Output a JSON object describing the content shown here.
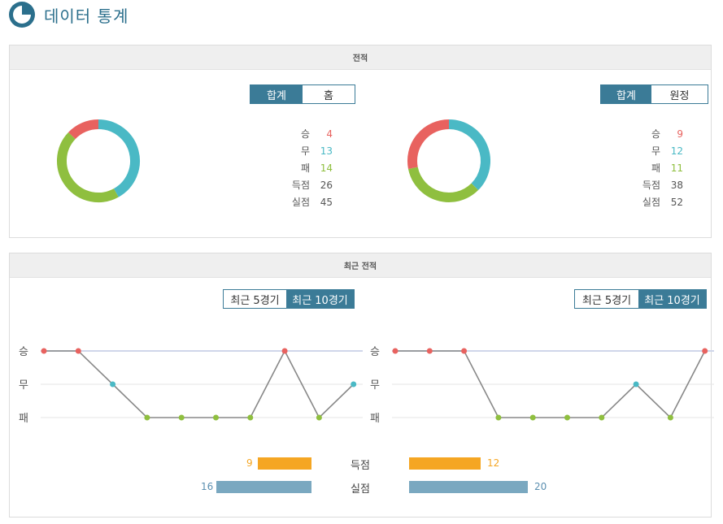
{
  "header": {
    "title": "데이터 통계",
    "icon": "pie-chart-icon"
  },
  "colors": {
    "win": "#e8625f",
    "draw": "#4ab9c5",
    "loss": "#8fbf3f",
    "accent": "#3b7b97",
    "goals": "#f5a623",
    "conceded": "#7aa8c0"
  },
  "record": {
    "title": "전적",
    "left": {
      "tabs": [
        "합계",
        "홈"
      ],
      "active_tab": 0,
      "stats": [
        {
          "label": "승",
          "value": "4"
        },
        {
          "label": "무",
          "value": "13"
        },
        {
          "label": "패",
          "value": "14"
        },
        {
          "label": "득점",
          "value": "26"
        },
        {
          "label": "실점",
          "value": "45"
        }
      ]
    },
    "right": {
      "tabs": [
        "합계",
        "원정"
      ],
      "active_tab": 0,
      "stats": [
        {
          "label": "승",
          "value": "9"
        },
        {
          "label": "무",
          "value": "12"
        },
        {
          "label": "패",
          "value": "11"
        },
        {
          "label": "득점",
          "value": "38"
        },
        {
          "label": "실점",
          "value": "52"
        }
      ]
    }
  },
  "recent": {
    "title": "최근 전적",
    "axis": [
      "승",
      "무",
      "패"
    ],
    "left": {
      "tabs": [
        "최근 5경기",
        "최근 10경기"
      ],
      "active_tab": 1,
      "results": [
        "W",
        "W",
        "D",
        "L",
        "L",
        "L",
        "L",
        "W",
        "L",
        "D"
      ]
    },
    "right": {
      "tabs": [
        "최근 5경기",
        "최근 10경기"
      ],
      "active_tab": 1,
      "results": [
        "W",
        "W",
        "W",
        "L",
        "L",
        "L",
        "L",
        "D",
        "L",
        "W"
      ]
    },
    "goals": {
      "label": "득점",
      "left": "9",
      "right": "12"
    },
    "conceded": {
      "label": "실점",
      "left": "16",
      "right": "20"
    }
  }
}
